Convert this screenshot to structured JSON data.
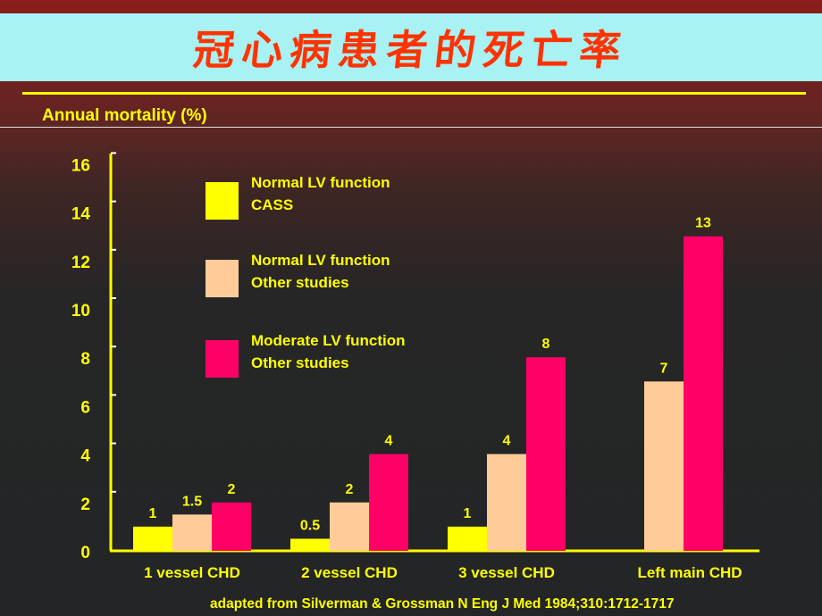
{
  "slide": {
    "title": "冠心病患者的死亡率",
    "source": "adapted from Silverman & Grossman N Eng J Med 1984;310:1712-1717"
  },
  "chart_data": {
    "type": "bar",
    "title": "",
    "xlabel": "",
    "ylabel": "Annual mortality (%)",
    "ylim": [
      0,
      16
    ],
    "yticks": [
      0,
      2,
      4,
      6,
      8,
      10,
      12,
      14,
      16
    ],
    "grid": false,
    "legend_position": "top-left",
    "categories": [
      "1 vessel CHD",
      "2 vessel CHD",
      "3 vessel CHD",
      "Left main CHD"
    ],
    "series": [
      {
        "name": "Normal LV function\nCASS",
        "legend_lines": [
          "Normal LV function",
          "CASS"
        ],
        "color": "#ffff00",
        "values": [
          1,
          0.5,
          1,
          null
        ],
        "labels": [
          "1",
          "0.5",
          "1",
          ""
        ]
      },
      {
        "name": "Normal LV function\nOther studies",
        "legend_lines": [
          "Normal LV function",
          "Other studies"
        ],
        "color": "#ffcc99",
        "values": [
          1.5,
          2,
          4,
          7
        ],
        "labels": [
          "1.5",
          "2",
          "4",
          "7"
        ]
      },
      {
        "name": "Moderate LV function\nOther studies",
        "legend_lines": [
          "Moderate LV function",
          "Other studies"
        ],
        "color": "#ff0066",
        "values": [
          2,
          4,
          8,
          13
        ],
        "labels": [
          "2",
          "4",
          "8",
          "13"
        ]
      }
    ]
  }
}
